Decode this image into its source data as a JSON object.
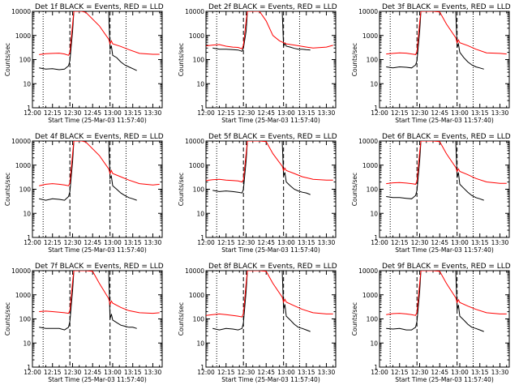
{
  "chart_data": {
    "type": "line",
    "layout": "grid-3x3",
    "y_scale": "log",
    "ylim": [
      1,
      10000
    ],
    "y_ticks": [
      1,
      10,
      100,
      1000,
      10000
    ],
    "y_tick_labels": [
      "1",
      "10",
      "100",
      "1000",
      "10000"
    ],
    "ylabel": "Counts/sec",
    "xlim": [
      "12:00",
      "13:37"
    ],
    "x_ticks": [
      "12:00",
      "12:15",
      "12:30",
      "12:45",
      "13:00",
      "13:15",
      "13:30"
    ],
    "xlabel": "Start Time (25-Mar-03 11:57:40)",
    "colors": {
      "events": "#000000",
      "lld": "#ff0000",
      "background": "#ffffff"
    },
    "marker_lines": {
      "dotted": [
        "12:08",
        "13:10"
      ],
      "dashed": [
        "12:28",
        "12:58"
      ]
    },
    "panels": [
      {
        "title": "Det 1f BLACK = Events, RED = LLD",
        "series": [
          {
            "name": "Events",
            "x": [
              "12:05",
              "12:10",
              "12:15",
              "12:20",
              "12:24",
              "12:27",
              "12:28",
              "12:30",
              "12:31",
              "12:57",
              "12:58",
              "12:59",
              "13:00",
              "13:03",
              "13:06",
              "13:09",
              "13:12",
              "13:15",
              "13:18"
            ],
            "y": [
              45,
              40,
              42,
              38,
              40,
              55,
              90,
              1500,
              10000,
              10000,
              260,
              380,
              150,
              120,
              80,
              60,
              50,
              42,
              35
            ]
          },
          {
            "name": "LLD",
            "x": [
              "12:05",
              "12:10",
              "12:15",
              "12:20",
              "12:24",
              "12:27",
              "12:28",
              "12:30",
              "12:31",
              "12:37",
              "12:40",
              "12:50",
              "12:57",
              "12:58",
              "12:59",
              "13:00",
              "13:06",
              "13:12",
              "13:20",
              "13:30",
              "13:35"
            ],
            "y": [
              160,
              175,
              180,
              185,
              170,
              150,
              200,
              3000,
              10000,
              10000,
              9000,
              2500,
              700,
              450,
              600,
              450,
              350,
              260,
              180,
              165,
              165
            ]
          }
        ]
      },
      {
        "title": "Det 2f BLACK = Events, RED = LLD",
        "series": [
          {
            "name": "Events",
            "x": [
              "12:05",
              "12:10",
              "12:15",
              "12:20",
              "12:24",
              "12:27",
              "12:28",
              "12:30",
              "12:31",
              "12:57",
              "12:58",
              "12:59",
              "13:00",
              "13:03",
              "13:06",
              "13:09",
              "13:12",
              "13:15",
              "13:18"
            ],
            "y": [
              300,
              270,
              270,
              260,
              250,
              220,
              300,
              1500,
              10000,
              10000,
              350,
              480,
              360,
              330,
              290,
              270,
              270,
              255,
              250
            ]
          },
          {
            "name": "LLD",
            "x": [
              "12:00",
              "12:05",
              "12:10",
              "12:15",
              "12:20",
              "12:24",
              "12:27",
              "12:28",
              "12:30",
              "12:31",
              "12:40",
              "12:45",
              "12:50",
              "12:55",
              "12:58",
              "13:00",
              "13:06",
              "13:12",
              "13:20",
              "13:30",
              "13:35"
            ],
            "y": [
              370,
              400,
              420,
              360,
              330,
              320,
              280,
              400,
              4000,
              10000,
              10000,
              4000,
              1000,
              600,
              500,
              450,
              400,
              350,
              300,
              330,
              390
            ]
          }
        ]
      },
      {
        "title": "Det 3f BLACK = Events, RED = LLD",
        "series": [
          {
            "name": "Events",
            "x": [
              "12:05",
              "12:10",
              "12:15",
              "12:20",
              "12:24",
              "12:27",
              "12:28",
              "12:30",
              "12:31",
              "12:57",
              "12:58",
              "12:59",
              "13:00",
              "13:03",
              "13:06",
              "13:09",
              "13:12",
              "13:15",
              "13:18"
            ],
            "y": [
              50,
              45,
              50,
              48,
              45,
              60,
              90,
              1500,
              10000,
              10000,
              320,
              450,
              200,
              120,
              80,
              60,
              50,
              45,
              40
            ]
          },
          {
            "name": "LLD",
            "x": [
              "12:05",
              "12:10",
              "12:15",
              "12:20",
              "12:24",
              "12:27",
              "12:28",
              "12:30",
              "12:31",
              "12:40",
              "12:45",
              "12:50",
              "12:57",
              "12:58",
              "12:59",
              "13:00",
              "13:06",
              "13:12",
              "13:20",
              "13:30",
              "13:35"
            ],
            "y": [
              170,
              180,
              190,
              185,
              170,
              160,
              220,
              3500,
              10000,
              10000,
              9500,
              3000,
              800,
              500,
              650,
              500,
              380,
              270,
              190,
              180,
              170
            ]
          }
        ]
      },
      {
        "title": "Det 4f BLACK = Events, RED = LLD",
        "series": [
          {
            "name": "Events",
            "x": [
              "12:05",
              "12:10",
              "12:15",
              "12:20",
              "12:24",
              "12:27",
              "12:28",
              "12:30",
              "12:31",
              "12:57",
              "12:58",
              "12:59",
              "13:00",
              "13:03",
              "13:06",
              "13:09",
              "13:12",
              "13:15",
              "13:18"
            ],
            "y": [
              40,
              35,
              40,
              38,
              35,
              50,
              80,
              1400,
              10000,
              10000,
              280,
              350,
              140,
              100,
              70,
              55,
              45,
              40,
              35
            ]
          },
          {
            "name": "LLD",
            "x": [
              "12:05",
              "12:10",
              "12:15",
              "12:20",
              "12:24",
              "12:27",
              "12:28",
              "12:30",
              "12:31",
              "12:37",
              "12:40",
              "12:50",
              "12:57",
              "12:58",
              "12:59",
              "13:00",
              "13:06",
              "13:12",
              "13:20",
              "13:30",
              "13:35"
            ],
            "y": [
              140,
              160,
              170,
              160,
              150,
              140,
              180,
              3000,
              10000,
              10000,
              9000,
              2500,
              700,
              450,
              600,
              450,
              330,
              240,
              170,
              150,
              160
            ]
          }
        ]
      },
      {
        "title": "Det 5f BLACK = Events, RED = LLD",
        "series": [
          {
            "name": "Events",
            "x": [
              "12:05",
              "12:10",
              "12:15",
              "12:20",
              "12:24",
              "12:27",
              "12:28",
              "12:30",
              "12:31",
              "12:57",
              "12:58",
              "12:59",
              "13:00",
              "13:03",
              "13:06",
              "13:09",
              "13:12",
              "13:15",
              "13:18"
            ],
            "y": [
              90,
              80,
              85,
              80,
              75,
              70,
              100,
              1500,
              10000,
              10000,
              350,
              500,
              200,
              140,
              100,
              85,
              75,
              70,
              60
            ]
          },
          {
            "name": "LLD",
            "x": [
              "12:00",
              "12:05",
              "12:10",
              "12:15",
              "12:20",
              "12:24",
              "12:27",
              "12:28",
              "12:30",
              "12:31",
              "12:40",
              "12:45",
              "12:50",
              "12:57",
              "12:58",
              "12:59",
              "13:00",
              "13:06",
              "13:12",
              "13:20",
              "13:30",
              "13:35"
            ],
            "y": [
              230,
              250,
              260,
              240,
              230,
              220,
              200,
              250,
              3000,
              10000,
              10000,
              9500,
              3000,
              900,
              600,
              750,
              600,
              450,
              330,
              260,
              240,
              240
            ]
          }
        ]
      },
      {
        "title": "Det 6f BLACK = Events, RED = LLD",
        "series": [
          {
            "name": "Events",
            "x": [
              "12:05",
              "12:10",
              "12:15",
              "12:20",
              "12:24",
              "12:27",
              "12:28",
              "12:30",
              "12:31",
              "12:57",
              "12:58",
              "12:59",
              "13:00",
              "13:03",
              "13:06",
              "13:09",
              "13:12",
              "13:15",
              "13:18"
            ],
            "y": [
              50,
              45,
              45,
              42,
              40,
              55,
              90,
              1500,
              10000,
              10000,
              300,
              500,
              160,
              110,
              75,
              55,
              45,
              40,
              35
            ]
          },
          {
            "name": "LLD",
            "x": [
              "12:05",
              "12:10",
              "12:15",
              "12:20",
              "12:24",
              "12:27",
              "12:28",
              "12:30",
              "12:31",
              "12:40",
              "12:45",
              "12:50",
              "12:57",
              "12:58",
              "12:59",
              "13:00",
              "13:06",
              "13:12",
              "13:20",
              "13:30",
              "13:35"
            ],
            "y": [
              170,
              185,
              190,
              180,
              170,
              160,
              220,
              3500,
              10000,
              10000,
              9500,
              3000,
              800,
              550,
              700,
              550,
              400,
              280,
              200,
              175,
              175
            ]
          }
        ]
      },
      {
        "title": "Det 7f BLACK = Events, RED = LLD",
        "series": [
          {
            "name": "Events",
            "x": [
              "12:05",
              "12:10",
              "12:15",
              "12:20",
              "12:24",
              "12:27",
              "12:28",
              "12:30",
              "12:31",
              "12:57",
              "12:58",
              "12:59",
              "13:00",
              "13:03",
              "13:06",
              "13:09",
              "13:12",
              "13:15",
              "13:18"
            ],
            "y": [
              45,
              40,
              40,
              40,
              35,
              45,
              80,
              1500,
              10000,
              10000,
              100,
              160,
              90,
              70,
              55,
              50,
              45,
              45,
              40
            ]
          },
          {
            "name": "LLD",
            "x": [
              "12:05",
              "12:10",
              "12:15",
              "12:20",
              "12:24",
              "12:27",
              "12:28",
              "12:30",
              "12:31",
              "12:40",
              "12:45",
              "12:50",
              "12:57",
              "12:58",
              "12:59",
              "13:00",
              "13:06",
              "13:12",
              "13:20",
              "13:30",
              "13:35"
            ],
            "y": [
              200,
              210,
              200,
              190,
              180,
              170,
              220,
              3500,
              10000,
              10000,
              9500,
              3000,
              700,
              400,
              550,
              450,
              300,
              220,
              180,
              170,
              180
            ]
          }
        ]
      },
      {
        "title": "Det 8f BLACK = Events, RED = LLD",
        "series": [
          {
            "name": "Events",
            "x": [
              "12:05",
              "12:10",
              "12:15",
              "12:20",
              "12:24",
              "12:27",
              "12:28",
              "12:30",
              "12:31",
              "12:57",
              "12:58",
              "12:59",
              "13:00",
              "13:03",
              "13:06",
              "13:09",
              "13:12",
              "13:15",
              "13:18"
            ],
            "y": [
              40,
              35,
              40,
              38,
              35,
              40,
              70,
              1400,
              10000,
              10000,
              250,
              400,
              130,
              90,
              60,
              45,
              40,
              35,
              30
            ]
          },
          {
            "name": "LLD",
            "x": [
              "12:00",
              "12:05",
              "12:10",
              "12:15",
              "12:20",
              "12:24",
              "12:27",
              "12:28",
              "12:30",
              "12:31",
              "12:40",
              "12:45",
              "12:50",
              "12:57",
              "12:58",
              "12:59",
              "13:00",
              "13:06",
              "13:12",
              "13:20",
              "13:30",
              "13:35"
            ],
            "y": [
              140,
              150,
              160,
              150,
              140,
              130,
              120,
              170,
              3000,
              10000,
              10000,
              9500,
              3000,
              800,
              500,
              650,
              500,
              350,
              250,
              180,
              160,
              160
            ]
          }
        ]
      },
      {
        "title": "Det 9f BLACK = Events, RED = LLD",
        "series": [
          {
            "name": "Events",
            "x": [
              "12:05",
              "12:10",
              "12:15",
              "12:20",
              "12:24",
              "12:27",
              "12:28",
              "12:30",
              "12:31",
              "12:57",
              "12:58",
              "12:59",
              "13:00",
              "13:03",
              "13:06",
              "13:09",
              "13:12",
              "13:15",
              "13:18"
            ],
            "y": [
              40,
              38,
              40,
              35,
              35,
              45,
              80,
              1400,
              10000,
              10000,
              240,
              380,
              130,
              90,
              60,
              45,
              40,
              35,
              30
            ]
          },
          {
            "name": "LLD",
            "x": [
              "12:05",
              "12:10",
              "12:15",
              "12:20",
              "12:24",
              "12:27",
              "12:28",
              "12:30",
              "12:31",
              "12:40",
              "12:45",
              "12:50",
              "12:57",
              "12:58",
              "12:59",
              "13:00",
              "13:06",
              "13:12",
              "13:20",
              "13:30",
              "13:35"
            ],
            "y": [
              150,
              165,
              170,
              160,
              150,
              140,
              190,
              3000,
              10000,
              10000,
              9500,
              3000,
              750,
              480,
              620,
              480,
              340,
              250,
              180,
              160,
              160
            ]
          }
        ]
      }
    ]
  }
}
